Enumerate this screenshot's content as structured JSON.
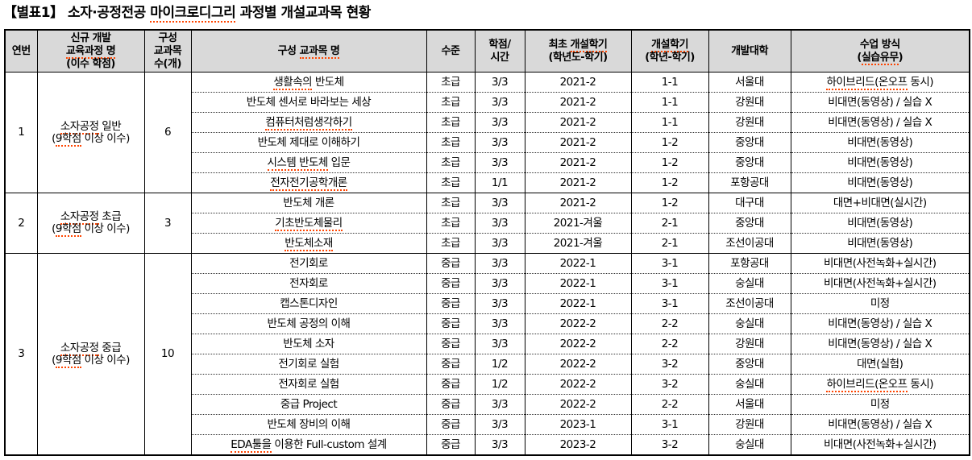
{
  "colors": {
    "header_bg": "#d9d9d9",
    "border": "#000000",
    "spellcheck_underline": "#ff4500",
    "text": "#000000"
  },
  "title": {
    "text": "【별표1】 소자·공정전공 마이크로디그리 과정별 개설교과목 현황",
    "marked": [
      "마이크로디그리"
    ]
  },
  "table": {
    "headers": [
      {
        "id": "col-seq",
        "lines": [
          "연번"
        ]
      },
      {
        "id": "col-program",
        "lines": [
          "신규 개발",
          "교육과정 명",
          "(이수 학점)"
        ],
        "marked": [
          "교육과정 명"
        ]
      },
      {
        "id": "col-count",
        "lines": [
          "구성",
          "교과목",
          "수(개)"
        ]
      },
      {
        "id": "col-course-name",
        "lines": [
          "구성 교과목 명"
        ],
        "marked": [
          "교과목 명"
        ]
      },
      {
        "id": "col-level",
        "lines": [
          "수준"
        ]
      },
      {
        "id": "col-credit",
        "lines": [
          "학점/",
          "시간"
        ]
      },
      {
        "id": "col-first-term",
        "lines": [
          "최초 개설학기",
          "(학년도-학기)"
        ],
        "marked": [
          "개설학기"
        ]
      },
      {
        "id": "col-term",
        "lines": [
          "개설학기",
          "(학년-학기)"
        ],
        "marked": [
          "개설학기"
        ]
      },
      {
        "id": "col-univ",
        "lines": [
          "개발대학"
        ]
      },
      {
        "id": "col-method",
        "lines": [
          "수업 방식",
          "(실습유무)"
        ],
        "marked": [
          "실습유무"
        ]
      }
    ],
    "groups": [
      {
        "no": "1",
        "program_lines": [
          "소자공정 일반",
          "(9학점 이상 이수)"
        ],
        "program_marked": [
          "소자공정",
          "9학점"
        ],
        "count": "6",
        "courses": [
          {
            "name": "생활속의 반도체",
            "name_marked": [
              "생활속의"
            ],
            "level": "초급",
            "credit": "3/3",
            "first_term": "2021-2",
            "term": "1-1",
            "univ": "서울대",
            "method": "하이브리드(온오프 동시)",
            "method_marked": [
              "하이브리드(온오프"
            ]
          },
          {
            "name": "반도체 센서로 바라보는 세상",
            "level": "초급",
            "credit": "3/3",
            "first_term": "2021-2",
            "term": "1-1",
            "univ": "강원대",
            "method": "비대면(동영상) / 실습 X"
          },
          {
            "name": "컴퓨터처럼생각하기",
            "name_marked": [
              "컴퓨터처럼생각하기"
            ],
            "level": "초급",
            "credit": "3/3",
            "first_term": "2021-2",
            "term": "1-1",
            "univ": "강원대",
            "method": "비대면(동영상) / 실습 X"
          },
          {
            "name": "반도체 제대로 이해하기",
            "level": "초급",
            "credit": "3/3",
            "first_term": "2021-2",
            "term": "1-2",
            "univ": "중앙대",
            "method": "비대면(동영상)"
          },
          {
            "name": "시스템 반도체 입문",
            "name_marked": [
              "시스템 반도체"
            ],
            "level": "초급",
            "credit": "3/3",
            "first_term": "2021-2",
            "term": "1-2",
            "univ": "중앙대",
            "method": "비대면(동영상)"
          },
          {
            "name": "전자전기공학개론",
            "name_marked": [
              "전자전기공학개론"
            ],
            "level": "초급",
            "credit": "1/1",
            "first_term": "2021-2",
            "term": "1-2",
            "univ": "포항공대",
            "method": "비대면(동영상)"
          }
        ]
      },
      {
        "no": "2",
        "program_lines": [
          "소자공정 초급",
          "(9학점 이상 이수)"
        ],
        "program_marked": [
          "소자공정",
          "9학점"
        ],
        "count": "3",
        "courses": [
          {
            "name": "반도체 개론",
            "level": "초급",
            "credit": "3/3",
            "first_term": "2021-2",
            "term": "1-2",
            "univ": "대구대",
            "method": "대면+비대면(실시간)"
          },
          {
            "name": "기초반도체물리",
            "name_marked": [
              "기초반도체물리"
            ],
            "level": "초급",
            "credit": "3/3",
            "first_term": "2021-겨울",
            "term": "2-1",
            "univ": "중앙대",
            "method": "비대면(동영상)"
          },
          {
            "name": "반도체소재",
            "name_marked": [
              "반도체소재"
            ],
            "level": "초급",
            "credit": "3/3",
            "first_term": "2021-겨울",
            "term": "2-1",
            "univ": "조선이공대",
            "method": "비대면(동영상)"
          }
        ]
      },
      {
        "no": "3",
        "program_lines": [
          "소자공정 중급",
          "(9학점 이상 이수)"
        ],
        "program_marked": [
          "소자공정",
          "9학점"
        ],
        "count": "10",
        "courses": [
          {
            "name": "전기회로",
            "level": "중급",
            "credit": "3/3",
            "first_term": "2022-1",
            "term": "3-1",
            "univ": "포항공대",
            "method": "비대면(사전녹화+실시간)"
          },
          {
            "name": "전자회로",
            "level": "중급",
            "credit": "3/3",
            "first_term": "2022-1",
            "term": "3-1",
            "univ": "숭실대",
            "method": "비대면(사전녹화+실시간)"
          },
          {
            "name": "캡스톤디자인",
            "level": "중급",
            "credit": "3/3",
            "first_term": "2022-1",
            "term": "3-1",
            "univ": "조선이공대",
            "method": "미정"
          },
          {
            "name": "반도체 공정의 이해",
            "level": "중급",
            "credit": "3/3",
            "first_term": "2022-2",
            "term": "2-2",
            "univ": "숭실대",
            "method": "비대면(동영상) / 실습 X"
          },
          {
            "name": "반도체 소자",
            "level": "중급",
            "credit": "3/3",
            "first_term": "2022-2",
            "term": "2-2",
            "univ": "강원대",
            "method": "비대면(동영상) / 실습 X"
          },
          {
            "name": "전기회로 실험",
            "level": "중급",
            "credit": "1/2",
            "first_term": "2022-2",
            "term": "3-2",
            "univ": "중앙대",
            "method": "대면(실험)"
          },
          {
            "name": "전자회로 실험",
            "level": "중급",
            "credit": "1/2",
            "first_term": "2022-2",
            "term": "3-2",
            "univ": "숭실대",
            "method": "하이브리드(온오프 동시)",
            "method_marked": [
              "하이브리드(온오프"
            ]
          },
          {
            "name": "중급 Project",
            "level": "중급",
            "credit": "3/3",
            "first_term": "2022-2",
            "term": "2-2",
            "univ": "서울대",
            "method": "미정"
          },
          {
            "name": "반도체 장비의 이해",
            "level": "중급",
            "credit": "3/3",
            "first_term": "2023-1",
            "term": "3-1",
            "univ": "강원대",
            "method": "비대면(동영상) / 실습 X"
          },
          {
            "name": "EDA툴을 이용한 Full-custom 설계",
            "name_marked": [
              "EDA툴을"
            ],
            "level": "중급",
            "credit": "3/3",
            "first_term": "2023-2",
            "term": "3-2",
            "univ": "숭실대",
            "method": "비대면(사전녹화+실시간)"
          }
        ]
      }
    ]
  }
}
